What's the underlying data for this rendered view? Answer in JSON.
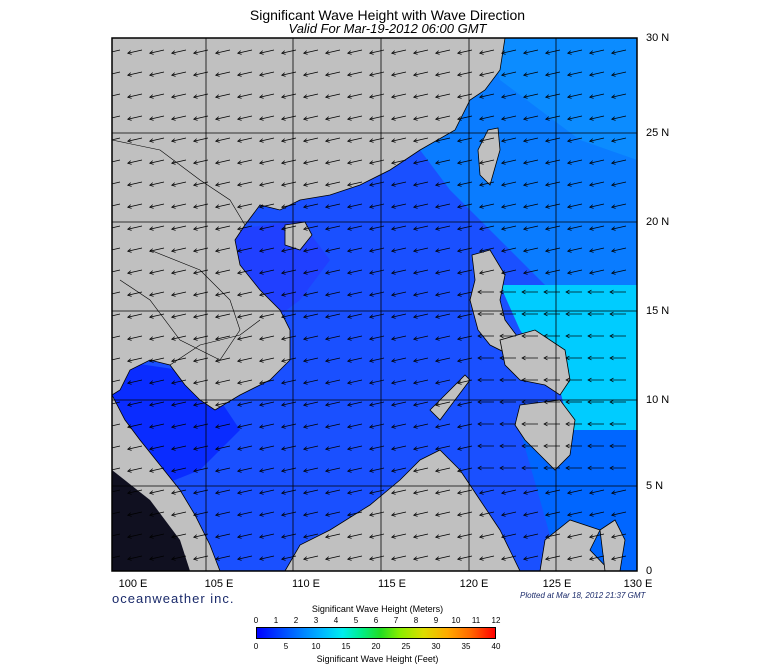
{
  "title": "Significant Wave Height with Wave Direction",
  "subtitle": "Valid For Mar-19-2012 06:00 GMT",
  "lat_labels": [
    "30 N",
    "25 N",
    "20 N",
    "15 N",
    "10 N",
    "5 N",
    "0"
  ],
  "lon_labels": [
    "100 E",
    "105 E",
    "110 E",
    "115 E",
    "120 E",
    "125 E",
    "130 E"
  ],
  "brand": "oceanweather inc.",
  "plotted_at": "Plotted at Mar 18, 2012 21:37 GMT",
  "scale": {
    "meters_title": "Significant Wave Height (Meters)",
    "meters_ticks": [
      "0",
      "1",
      "2",
      "3",
      "4",
      "5",
      "6",
      "7",
      "8",
      "9",
      "10",
      "11",
      "12"
    ],
    "feet_title": "Significant Wave Height (Feet)",
    "feet_ticks": [
      "0",
      "5",
      "10",
      "15",
      "20",
      "25",
      "30",
      "35",
      "40"
    ]
  },
  "colors": {
    "land": "#c0c0c0",
    "deep_blue": "#0000ff",
    "mid_blue": "#1a50ff",
    "light_blue": "#0a8cff",
    "cyan": "#00ccff"
  },
  "wave_direction": "from northeast toward southwest"
}
